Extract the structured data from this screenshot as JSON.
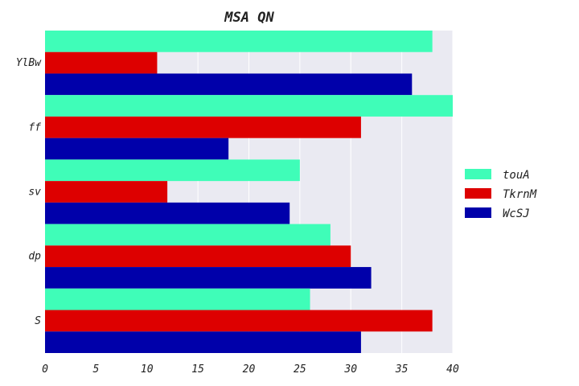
{
  "chart_data": {
    "type": "bar",
    "orientation": "horizontal",
    "title": "MSA QN",
    "xlabel": "",
    "ylabel": "",
    "categories": [
      "YlBw",
      "ff",
      "sv",
      "dp",
      "S"
    ],
    "series": [
      {
        "name": "touA",
        "color": "#3ffdb8",
        "values": [
          38,
          40,
          25,
          28,
          26
        ]
      },
      {
        "name": "TkrnM",
        "color": "#dd0000",
        "values": [
          11,
          31,
          12,
          30,
          38
        ]
      },
      {
        "name": "WcSJ",
        "color": "#0000aa",
        "values": [
          36,
          18,
          24,
          32,
          31
        ]
      }
    ],
    "xlim": [
      0,
      40
    ],
    "xticks": [
      0,
      5,
      10,
      15,
      20,
      25,
      30,
      35,
      40
    ],
    "grid": true,
    "legend_position": "right",
    "plot_background": "#eaeaf2"
  }
}
